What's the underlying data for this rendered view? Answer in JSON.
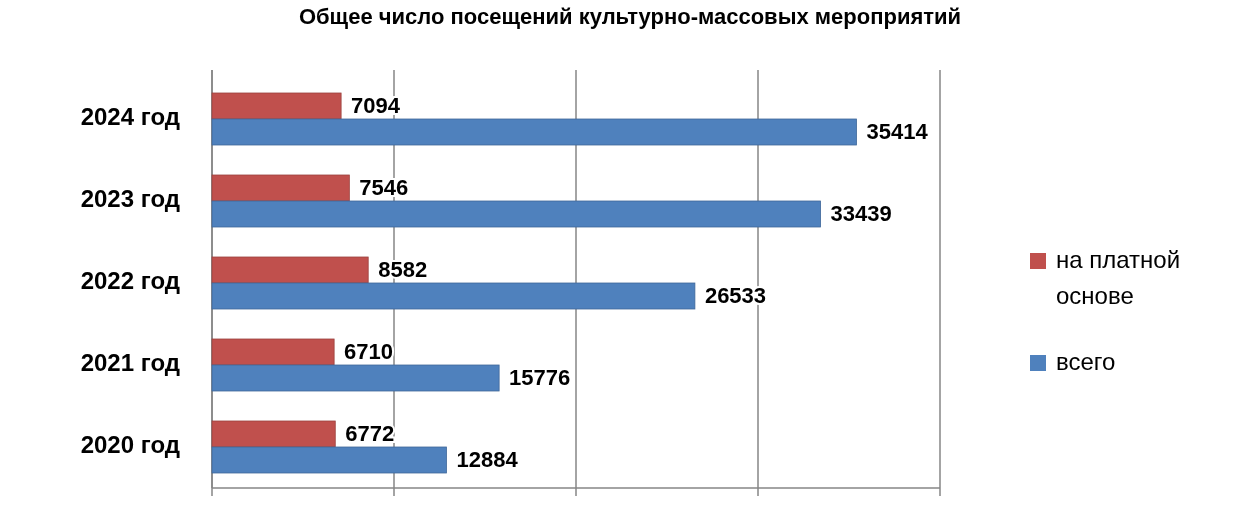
{
  "chart_data": {
    "type": "bar",
    "orientation": "horizontal",
    "title": "Общее число посещений культурно-массовых мероприятий",
    "categories": [
      "2024 год",
      "2023 год",
      "2022 год",
      "2021 год",
      "2020 год"
    ],
    "series": [
      {
        "name": "на платной основе",
        "color": "#c0504d",
        "values": [
          7094,
          7546,
          8582,
          6710,
          6772
        ]
      },
      {
        "name": "всего",
        "color": "#4f81bd",
        "values": [
          35414,
          33439,
          26533,
          15776,
          12884
        ]
      }
    ],
    "xlim": [
      0,
      40000
    ],
    "xticks": [
      {
        "value": 0,
        "label": null
      },
      {
        "value": 10000,
        "label": null
      },
      {
        "value": 20000,
        "label": null
      },
      {
        "value": 30000,
        "label": null
      },
      {
        "value": 40000,
        "label": null
      }
    ],
    "tick_labels": "y",
    "grid": "x",
    "legend": "right",
    "data_labels": true
  }
}
